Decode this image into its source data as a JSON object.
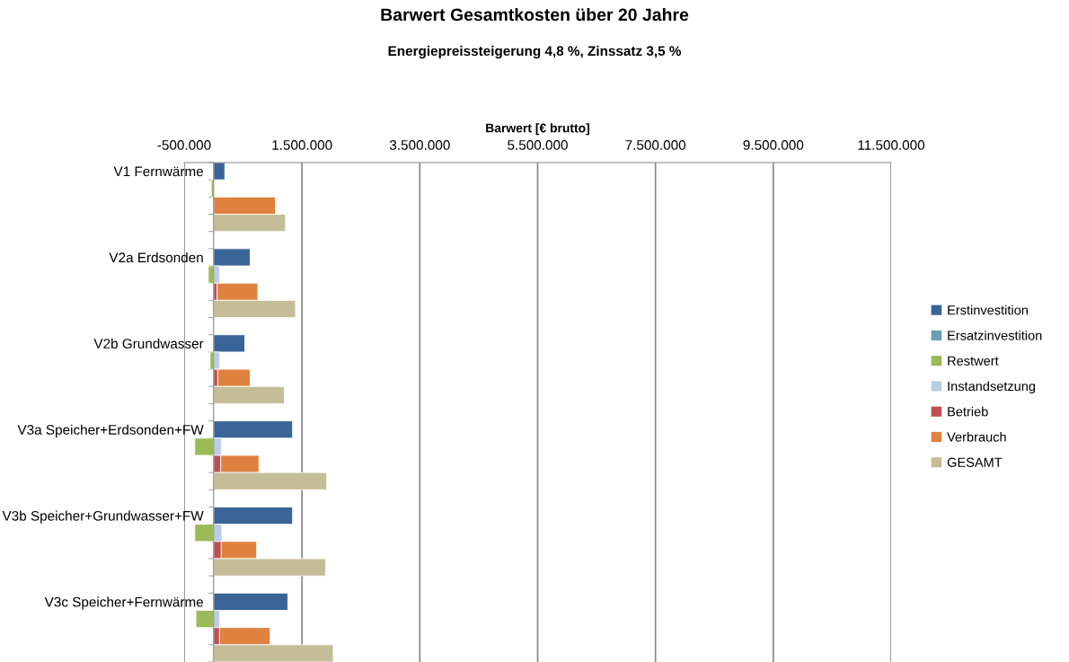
{
  "chart_data": {
    "type": "bar",
    "orientation": "horizontal",
    "stacked": true,
    "title": "Barwert Gesamtkosten über 20 Jahre",
    "subtitle": "Energiepreissteigerung 4,8 %, Zinssatz 3,5 %",
    "xlabel": "Barwert [€ brutto]",
    "categories": [
      "V1 Fernwärme",
      null,
      null,
      null,
      null,
      "V2a Erdsonden",
      null,
      null,
      null,
      null,
      "V2b Grundwasser",
      null,
      null,
      null,
      null,
      "V3a Speicher+Erdsonden+FW",
      null,
      null,
      null,
      null,
      "V3b Speicher+Grundwasser+FW",
      null,
      null,
      null,
      null,
      "V3c Speicher+Fernwärme",
      null,
      null,
      null
    ],
    "series": [
      {
        "name": "Erstinvestition",
        "color": "#3a6496",
        "values": [
          190000,
          null,
          null,
          null,
          null,
          620000,
          null,
          null,
          null,
          null,
          530000,
          null,
          null,
          null,
          null,
          1340000,
          null,
          null,
          null,
          null,
          1340000,
          null,
          null,
          null,
          null,
          1260000,
          null,
          null,
          null
        ]
      },
      {
        "name": "Ersatzinvestition",
        "color": "#6a9fb5",
        "values": [
          null,
          null,
          null,
          null,
          null,
          null,
          null,
          null,
          null,
          null,
          null,
          null,
          null,
          null,
          null,
          null,
          null,
          null,
          null,
          null,
          null,
          null,
          null,
          null,
          null,
          null,
          null,
          null,
          null
        ]
      },
      {
        "name": "Restwert",
        "color": "#9bbb59",
        "values": [
          null,
          -40000,
          null,
          null,
          null,
          null,
          -90000,
          null,
          null,
          null,
          null,
          -60000,
          null,
          null,
          null,
          null,
          -320000,
          null,
          null,
          null,
          null,
          -320000,
          null,
          null,
          null,
          null,
          -300000,
          null,
          null
        ]
      },
      {
        "name": "Instandsetzung",
        "color": "#b9cde5",
        "values": [
          null,
          null,
          null,
          null,
          null,
          null,
          100000,
          null,
          null,
          null,
          null,
          100000,
          null,
          null,
          null,
          null,
          130000,
          null,
          null,
          null,
          null,
          140000,
          null,
          null,
          null,
          null,
          100000,
          null,
          null
        ]
      },
      {
        "name": "Betrieb",
        "color": "#c0504d",
        "values": [
          null,
          null,
          null,
          null,
          null,
          null,
          null,
          60000,
          null,
          null,
          null,
          null,
          70000,
          null,
          null,
          null,
          null,
          120000,
          null,
          null,
          null,
          null,
          130000,
          null,
          null,
          null,
          null,
          100000,
          null
        ]
      },
      {
        "name": "Verbrauch",
        "color": "#e0823f",
        "values": [
          null,
          null,
          1050000,
          null,
          null,
          null,
          null,
          690000,
          null,
          null,
          null,
          null,
          550000,
          null,
          null,
          null,
          null,
          650000,
          null,
          null,
          null,
          null,
          600000,
          null,
          null,
          null,
          null,
          860000,
          null
        ]
      },
      {
        "name": "GESAMT",
        "color": "#c4bd97",
        "values": [
          null,
          null,
          null,
          1220000,
          null,
          null,
          null,
          null,
          1390000,
          null,
          null,
          null,
          null,
          1200000,
          null,
          null,
          null,
          null,
          1920000,
          null,
          null,
          null,
          null,
          1900000,
          null,
          null,
          null,
          null,
          2030000
        ]
      }
    ],
    "xlim": [
      -500000,
      11500000
    ],
    "xticks": [
      {
        "value": -500000,
        "label": "-500.000"
      },
      {
        "value": 1500000,
        "label": "1.500.000"
      },
      {
        "value": 3500000,
        "label": "3.500.000"
      },
      {
        "value": 5500000,
        "label": "5.500.000"
      },
      {
        "value": 7500000,
        "label": "7.500.000"
      },
      {
        "value": 9500000,
        "label": "9.500.000"
      },
      {
        "value": 11500000,
        "label": "11.500.000"
      }
    ],
    "grid": "x",
    "legend": "right"
  }
}
